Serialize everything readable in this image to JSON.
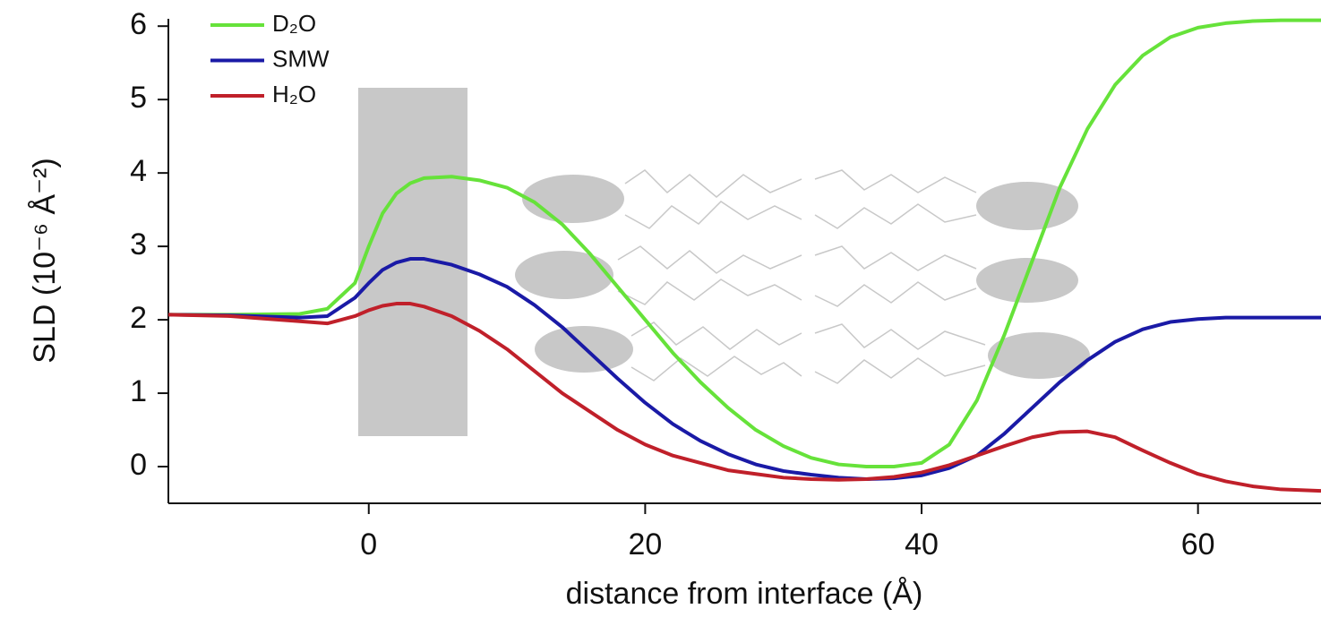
{
  "chart_data": {
    "type": "line",
    "xlabel": "distance from interface (Å)",
    "ylabel": "SLD (10⁻⁶ Å⁻²)",
    "x": [
      -14.5,
      -10,
      -5,
      -3,
      -1,
      0,
      1,
      2,
      3,
      4,
      6,
      8,
      10,
      12,
      14,
      16,
      18,
      20,
      22,
      24,
      26,
      28,
      30,
      32,
      34,
      36,
      38,
      40,
      42,
      44,
      46,
      48,
      50,
      52,
      54,
      56,
      58,
      60,
      62,
      64,
      66,
      68.9
    ],
    "series": [
      {
        "name": "D₂O",
        "color": "#66e23a",
        "values": [
          2.07,
          2.07,
          2.08,
          2.15,
          2.5,
          3.0,
          3.45,
          3.72,
          3.86,
          3.93,
          3.95,
          3.9,
          3.8,
          3.6,
          3.3,
          2.9,
          2.45,
          2.0,
          1.55,
          1.15,
          0.8,
          0.5,
          0.28,
          0.12,
          0.03,
          0.0,
          0.0,
          0.05,
          0.3,
          0.9,
          1.8,
          2.8,
          3.8,
          4.6,
          5.2,
          5.6,
          5.85,
          5.98,
          6.04,
          6.07,
          6.08,
          6.08
        ]
      },
      {
        "name": "SMW",
        "color": "#1a1aa6",
        "values": [
          2.07,
          2.06,
          2.03,
          2.05,
          2.3,
          2.5,
          2.68,
          2.78,
          2.83,
          2.83,
          2.75,
          2.62,
          2.45,
          2.2,
          1.9,
          1.55,
          1.2,
          0.87,
          0.58,
          0.35,
          0.17,
          0.03,
          -0.06,
          -0.11,
          -0.15,
          -0.17,
          -0.16,
          -0.12,
          -0.02,
          0.15,
          0.45,
          0.8,
          1.15,
          1.45,
          1.7,
          1.87,
          1.97,
          2.01,
          2.03,
          2.03,
          2.03,
          2.03
        ]
      },
      {
        "name": "H₂O",
        "color": "#c0202a",
        "values": [
          2.07,
          2.05,
          1.98,
          1.95,
          2.05,
          2.13,
          2.19,
          2.22,
          2.22,
          2.18,
          2.05,
          1.85,
          1.6,
          1.3,
          1.0,
          0.75,
          0.5,
          0.3,
          0.15,
          0.05,
          -0.05,
          -0.1,
          -0.15,
          -0.17,
          -0.18,
          -0.17,
          -0.14,
          -0.08,
          0.02,
          0.15,
          0.28,
          0.4,
          0.47,
          0.48,
          0.4,
          0.22,
          0.05,
          -0.1,
          -0.2,
          -0.27,
          -0.31,
          -0.33
        ]
      }
    ],
    "xlim": [
      -14.5,
      68.9
    ],
    "xticks": [
      0,
      20,
      40,
      60
    ],
    "ylim": [
      -0.5,
      6.1
    ],
    "yticks": [
      0,
      1,
      2,
      3,
      4,
      5,
      6
    ],
    "legend": "top-left"
  }
}
